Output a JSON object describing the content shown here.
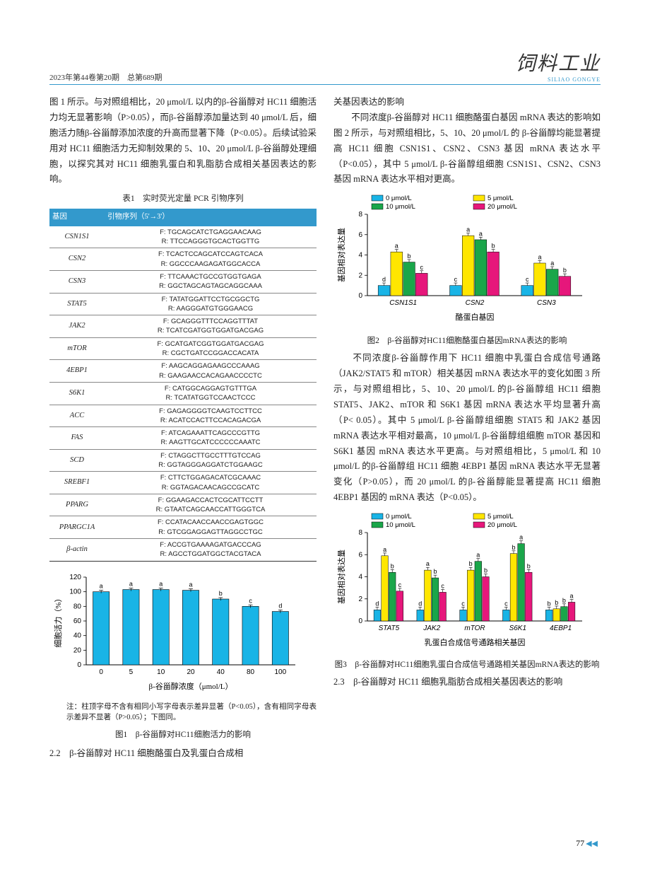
{
  "header": {
    "issue": "2023年第44卷第20期　总第689期",
    "journal": "饲料工业",
    "pinyin": "SILIAO GONGYE"
  },
  "col1": {
    "para1": "图 1 所示。与对照组相比，20 μmol/L 以内的β-谷甾醇对 HC11 细胞活力均无显著影响（P>0.05），而β-谷甾醇添加量达到 40 μmol/L 后，细胞活力随β-谷甾醇添加浓度的升高而显著下降（P<0.05）。后续试验采用对 HC11 细胞活力无抑制效果的 5、10、20 μmol/L β-谷甾醇处理细胞，以探究其对 HC11 细胞乳蛋白和乳脂肪合成相关基因表达的影响。",
    "table1_caption": "表1　实时荧光定量 PCR 引物序列",
    "table1_h1": "基因",
    "table1_h2": "引物序列（5'→3'）",
    "primers": [
      {
        "g": "CSN1S1",
        "f": "F: TGCAGCATCTGAGGAACAAG",
        "r": "R: TTCCAGGGTGCACTGGTTG"
      },
      {
        "g": "CSN2",
        "f": "F: TCACTCCAGCATCCAGTCACA",
        "r": "R: GGCCCAAGAGATGGCACCA"
      },
      {
        "g": "CSN3",
        "f": "F: TTCAAACTGCCGTGGTGAGA",
        "r": "R: GGCTAGCAGTAGCAGGCAAA"
      },
      {
        "g": "STAT5",
        "f": "F: TATATGGATTCCTGCGGCTG",
        "r": "R: AAGGGATGTGGGAACG"
      },
      {
        "g": "JAK2",
        "f": "F: GCAGGGTTTCCAGGTTTAT",
        "r": "R: TCATCGATGGTGGATGACGAG"
      },
      {
        "g": "mTOR",
        "f": "F: GCATGATCGGTGGATGACGAG",
        "r": "R: CGCTGATCCGGACCACATA"
      },
      {
        "g": "4EBP1",
        "f": "F: AAGCAGGAGAAGCCCAAAG",
        "r": "R: GAAGAACCACAGAACCCCTC"
      },
      {
        "g": "S6K1",
        "f": "F: CATGGCAGGAGTGTTTGA",
        "r": "R: TCATATGGTCCAACTCCC"
      },
      {
        "g": "ACC",
        "f": "F: GAGAGGGGTCAAGTCCTTCC",
        "r": "R: ACATCCACTTCCACAGACGA"
      },
      {
        "g": "FAS",
        "f": "F: ATCAGAAATTCAGCCCGTTG",
        "r": "R: AAGTTGCATCCCCCCAAATC"
      },
      {
        "g": "SCD",
        "f": "F: CTAGGCTTGCCTTTGTCCAG",
        "r": "R: GGTAGGGAGGATCTGGAAGC"
      },
      {
        "g": "SREBF1",
        "f": "F: CTTCTGGAGACATCGCAAAC",
        "r": "R: GGTAGACAACAGCCGCATC"
      },
      {
        "g": "PPARG",
        "f": "F: GGAAGACCACTCGCATTCCTT",
        "r": "R: GTAATCAGCAACCATTGGGTCA"
      },
      {
        "g": "PPARGC1A",
        "f": "F: CCATACAACCAACCGAGTGGC",
        "r": "R: GTCGGAGGAGTTAGGCCTGC"
      },
      {
        "g": "β-actin",
        "f": "F: ACCGTGAAAAGATGACCCAG",
        "r": "R: AGCCTGGATGGCTACGTACA"
      }
    ],
    "fig1_caption": "图1　β-谷甾醇对HC11细胞活力的影响",
    "fig1_note": "注：柱顶字母不含有相同小写字母表示差异显著（P<0.05），含有相同字母表示差异不显著（P>0.05）；下图同。",
    "fig1": {
      "ylabel": "细胞活力（%）",
      "xlabel": "β-谷甾醇浓度（μmol/L）",
      "categories": [
        "0",
        "5",
        "10",
        "20",
        "40",
        "80",
        "100"
      ],
      "values": [
        100,
        103,
        103,
        102,
        90,
        80,
        73
      ],
      "err": [
        2,
        2,
        2,
        2,
        2,
        2,
        2
      ],
      "sig": [
        "a",
        "a",
        "a",
        "a",
        "b",
        "c",
        "d"
      ],
      "ylim": [
        0,
        120
      ],
      "ytick": 20,
      "bar_color": "#19b4e6",
      "border": "#000"
    },
    "sec22": "2.2　β-谷甾醇对 HC11 细胞酪蛋白及乳蛋白合成相"
  },
  "col2": {
    "para1_head": "关基因表达的影响",
    "para2": "　　不同浓度β-谷甾醇对 HC11 细胞酪蛋白基因 mRNA 表达的影响如图 2 所示，与对照组相比，5、10、20 μmol/L 的 β-谷甾醇均能显著提高 HC11 细胞 CSN1S1、CSN2、CSN3 基因 mRNA 表达水平（P<0.05），其中 5 μmol/L β-谷甾醇组细胞 CSN1S1、CSN2、CSN3 基因 mRNA 表达水平相对更高。",
    "fig2_caption": "图2　β-谷甾醇对HC11细胞酪蛋白基因mRNA表达的影响",
    "fig2": {
      "ylabel": "基因相对表达量",
      "xlabel": "酪蛋白基因",
      "legend": [
        "0 μmol/L",
        "5 μmol/L",
        "10 μmol/L",
        "20 μmol/L"
      ],
      "legend_colors": [
        "#19b4e6",
        "#ffe600",
        "#1aa64a",
        "#e6177b"
      ],
      "categories": [
        "CSN1S1",
        "CSN2",
        "CSN3"
      ],
      "series": [
        {
          "vals": [
            1.0,
            1.0,
            1.0
          ],
          "sig": [
            "d",
            "c",
            "c"
          ]
        },
        {
          "vals": [
            4.3,
            5.9,
            3.2
          ],
          "sig": [
            "a",
            "a",
            "a"
          ]
        },
        {
          "vals": [
            3.3,
            5.5,
            2.6
          ],
          "sig": [
            "b",
            "a",
            "a"
          ]
        },
        {
          "vals": [
            2.2,
            4.3,
            1.9
          ],
          "sig": [
            "c",
            "b",
            "b"
          ]
        }
      ],
      "ylim": [
        0,
        8
      ],
      "ytick": 2
    },
    "para3": "　　不同浓度β-谷甾醇作用下 HC11 细胞中乳蛋白合成信号通路（JAK2/STAT5 和 mTOR）相关基因 mRNA 表达水平的变化如图 3 所示，与对照组相比，5、10、20 μmol/L 的β-谷甾醇组 HC11 细胞 STAT5、JAK2、mTOR 和 S6K1 基因 mRNA 表达水平均显著升高（P< 0.05）。其中 5 μmol/L β-谷甾醇组细胞 STAT5 和 JAK2 基因 mRNA 表达水平相对最高，10 μmol/L β-谷甾醇组细胞 mTOR 基因和 S6K1 基因 mRNA 表达水平更高。与对照组相比，5 μmol/L 和 10 μmol/L 的β-谷甾醇组 HC11 细胞 4EBP1 基因 mRNA 表达水平无显著变化（P>0.05），而 20 μmol/L 的β-谷甾醇能显著提高 HC11 细胞 4EBP1 基因的 mRNA 表达（P<0.05）。",
    "fig3_caption": "图3　β-谷甾醇对HC11细胞乳蛋白合成信号通路相关基因mRNA表达的影响",
    "fig3": {
      "ylabel": "基因相对表达量",
      "xlabel": "乳蛋白合成信号通路相关基因",
      "legend": [
        "0 μmol/L",
        "5 μmol/L",
        "10 μmol/L",
        "20 μmol/L"
      ],
      "legend_colors": [
        "#19b4e6",
        "#ffe600",
        "#1aa64a",
        "#e6177b"
      ],
      "categories": [
        "STAT5",
        "JAK2",
        "mTOR",
        "S6K1",
        "4EBP1"
      ],
      "series": [
        {
          "vals": [
            1.0,
            1.0,
            1.0,
            1.0,
            1.0
          ],
          "sig": [
            "d",
            "d",
            "c",
            "c",
            "b"
          ]
        },
        {
          "vals": [
            5.9,
            4.6,
            4.6,
            6.1,
            1.1
          ],
          "sig": [
            "a",
            "a",
            "b",
            "b",
            "b"
          ]
        },
        {
          "vals": [
            4.4,
            3.9,
            5.4,
            7.0,
            1.3
          ],
          "sig": [
            "b",
            "b",
            "a",
            "a",
            "b"
          ]
        },
        {
          "vals": [
            2.7,
            2.6,
            4.0,
            4.4,
            1.7
          ],
          "sig": [
            "c",
            "c",
            "b",
            "b",
            "a"
          ]
        }
      ],
      "ylim": [
        0,
        8
      ],
      "ytick": 2
    },
    "sec23": "2.3　β-谷甾醇对 HC11 细胞乳脂肪合成相关基因表达的影响"
  },
  "page_num": "77"
}
